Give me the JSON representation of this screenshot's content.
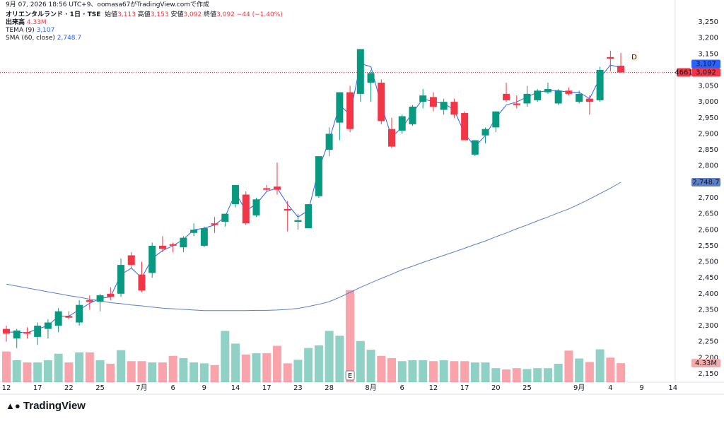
{
  "chart_data": {
    "type": "candlestick",
    "attribution": "9月 07, 2026 18:56 UTC+9、oomasa67がTradingView.comで作成",
    "title": "オリエンタルランド · 1日 · TSE",
    "ohlc_legend": {
      "open_name": "始値",
      "open": "3,113",
      "high_name": "高値",
      "high": "3,153",
      "low_name": "安値",
      "low": "3,092",
      "close_name": "終値",
      "close": "3,092",
      "change": "−44 (−1.40%)"
    },
    "volume_name": "出来高",
    "volume_label": "4.33M",
    "symbol_code": "4661",
    "close_label": "3,092",
    "earnings_marker": "E",
    "dividend_marker": "D",
    "brand": "TradingView",
    "up_color": "#089981",
    "down_color": "#f23645",
    "categories": [
      "12",
      null,
      null,
      "17",
      null,
      null,
      "22",
      null,
      null,
      "25",
      null,
      null,
      null,
      "7月",
      null,
      null,
      "6",
      null,
      null,
      "9",
      null,
      null,
      "14",
      null,
      null,
      "17",
      null,
      null,
      "23",
      null,
      null,
      "28",
      null,
      null,
      null,
      "8月",
      null,
      null,
      "6",
      null,
      null,
      "12",
      null,
      null,
      "17",
      null,
      null,
      "20",
      null,
      null,
      "25",
      null,
      null,
      null,
      null,
      "9月",
      null,
      null,
      "4",
      null
    ],
    "future_categories": [
      "9",
      "14"
    ],
    "open": [
      2290,
      2260,
      2280,
      2265,
      2290,
      2300,
      2330,
      2310,
      2380,
      2375,
      2400,
      2400,
      2520,
      2460,
      2465,
      2550,
      2555,
      2545,
      2590,
      2550,
      2620,
      2625,
      2680,
      2710,
      2645,
      2730,
      2735,
      2665,
      2625,
      2605,
      2705,
      2850,
      2935,
      3030,
      3025,
      3060,
      3060,
      2915,
      2910,
      2930,
      3000,
      3015,
      2975,
      3000,
      2965,
      2835,
      2895,
      2920,
      3025,
      2995,
      2995,
      3005,
      3030,
      2995,
      3035,
      3000,
      3010,
      3005,
      3140,
      3113
    ],
    "high": [
      2300,
      2290,
      2295,
      2310,
      2320,
      2355,
      2345,
      2380,
      2395,
      2400,
      2420,
      2510,
      2530,
      2500,
      2560,
      2580,
      2560,
      2580,
      2620,
      2610,
      2640,
      2650,
      2740,
      2720,
      2700,
      2740,
      2810,
      2690,
      2650,
      2680,
      2830,
      2920,
      3030,
      3050,
      3165,
      3100,
      3070,
      2950,
      2960,
      2990,
      3040,
      3030,
      3010,
      3010,
      2970,
      2880,
      2920,
      2970,
      3060,
      3020,
      3050,
      3040,
      3060,
      3040,
      3045,
      3035,
      3020,
      3110,
      3160,
      3153
    ],
    "low": [
      2250,
      2230,
      2260,
      2240,
      2260,
      2280,
      2320,
      2300,
      2350,
      2345,
      2380,
      2390,
      2480,
      2405,
      2450,
      2530,
      2530,
      2530,
      2580,
      2545,
      2590,
      2610,
      2670,
      2615,
      2640,
      2720,
      2710,
      2595,
      2600,
      2605,
      2700,
      2830,
      2880,
      2905,
      3000,
      3000,
      2930,
      2855,
      2900,
      2925,
      2980,
      2970,
      2960,
      2950,
      2880,
      2830,
      2870,
      2905,
      3000,
      2980,
      2985,
      3000,
      3025,
      2990,
      3020,
      2995,
      2960,
      3000,
      3095,
      3092
    ],
    "close": [
      2275,
      2285,
      2275,
      2300,
      2310,
      2345,
      2325,
      2365,
      2375,
      2395,
      2390,
      2490,
      2490,
      2410,
      2550,
      2540,
      2550,
      2575,
      2600,
      2605,
      2615,
      2650,
      2740,
      2620,
      2695,
      2725,
      2725,
      2660,
      2630,
      2680,
      2830,
      2900,
      3030,
      2915,
      3165,
      3090,
      2940,
      2860,
      2955,
      2985,
      3020,
      2985,
      3000,
      2960,
      2880,
      2880,
      2915,
      2970,
      3005,
      2990,
      3025,
      3035,
      3040,
      3035,
      3025,
      3025,
      3000,
      3100,
      3135,
      3092
    ],
    "volume": [
      7.0,
      5.0,
      4.5,
      4.5,
      5.0,
      6.5,
      4.5,
      6.8,
      6.8,
      5.0,
      4.2,
      7.3,
      4.8,
      4.8,
      4.5,
      4.5,
      6.0,
      5.5,
      4.5,
      4.3,
      3.9,
      11.7,
      8.8,
      6.3,
      6.6,
      6.6,
      8.3,
      4.3,
      5.1,
      7.8,
      8.4,
      11.7,
      10.6,
      21.0,
      9.4,
      7.4,
      6.0,
      5.5,
      4.8,
      5.0,
      5.0,
      4.8,
      5.0,
      4.8,
      4.8,
      4.5,
      4.5,
      3.2,
      2.9,
      3.2,
      3.0,
      3.2,
      3.2,
      4.2,
      7.2,
      5.4,
      4.6,
      7.5,
      5.6,
      4.33
    ],
    "series": [
      {
        "name": "TEMA (9)",
        "color": "#2962ff",
        "last_label": "3,107",
        "values": [
          2280,
          2280,
          2278,
          2290,
          2300,
          2330,
          2330,
          2350,
          2370,
          2385,
          2390,
          2460,
          2480,
          2450,
          2510,
          2535,
          2550,
          2570,
          2600,
          2605,
          2615,
          2640,
          2715,
          2660,
          2680,
          2720,
          2730,
          2680,
          2640,
          2660,
          2790,
          2880,
          2990,
          2960,
          3120,
          3110,
          2990,
          2890,
          2920,
          2965,
          3010,
          3000,
          2995,
          2975,
          2900,
          2860,
          2895,
          2950,
          2990,
          3000,
          3015,
          3030,
          3035,
          3035,
          3030,
          3030,
          3010,
          3075,
          3115,
          3107
        ]
      },
      {
        "name": "SMA (60, close)",
        "color": "#5b7fc8",
        "last_label": "2,748.7",
        "values": [
          2430,
          2424,
          2418,
          2412,
          2406,
          2400,
          2394,
          2389,
          2383,
          2378,
          2372,
          2369,
          2365,
          2362,
          2358,
          2355,
          2353,
          2351,
          2349,
          2347,
          2347,
          2347,
          2347,
          2347,
          2348,
          2348,
          2349,
          2351,
          2354,
          2360,
          2367,
          2375,
          2389,
          2404,
          2420,
          2434,
          2448,
          2461,
          2475,
          2486,
          2498,
          2509,
          2520,
          2531,
          2542,
          2554,
          2565,
          2578,
          2590,
          2603,
          2615,
          2628,
          2640,
          2653,
          2665,
          2680,
          2696,
          2713,
          2730,
          2748.7
        ]
      }
    ],
    "ylim": [
      2150,
      3250
    ],
    "yticks": [
      {
        "value": 3250,
        "label": "3,250"
      },
      {
        "value": 3200,
        "label": "3,200"
      },
      {
        "value": 3150,
        "label": "3,150"
      },
      {
        "value": 3100,
        "label": "3,100"
      },
      {
        "value": 3050,
        "label": "3,050"
      },
      {
        "value": 3000,
        "label": "3,000"
      },
      {
        "value": 2950,
        "label": "2,950"
      },
      {
        "value": 2900,
        "label": "2,900"
      },
      {
        "value": 2850,
        "label": "2,850"
      },
      {
        "value": 2800,
        "label": "2,800"
      },
      {
        "value": 2750,
        "label": "2,750"
      },
      {
        "value": 2700,
        "label": "2,700"
      },
      {
        "value": 2650,
        "label": "2,650"
      },
      {
        "value": 2600,
        "label": "2,600"
      },
      {
        "value": 2550,
        "label": "2,550"
      },
      {
        "value": 2500,
        "label": "2,500"
      },
      {
        "value": 2450,
        "label": "2,450"
      },
      {
        "value": 2400,
        "label": "2,400"
      },
      {
        "value": 2350,
        "label": "2,350"
      },
      {
        "value": 2300,
        "label": "2,300"
      },
      {
        "value": 2250,
        "label": "2,250"
      },
      {
        "value": 2200,
        "label": "2,200"
      },
      {
        "value": 2150,
        "label": "2,150"
      }
    ]
  }
}
